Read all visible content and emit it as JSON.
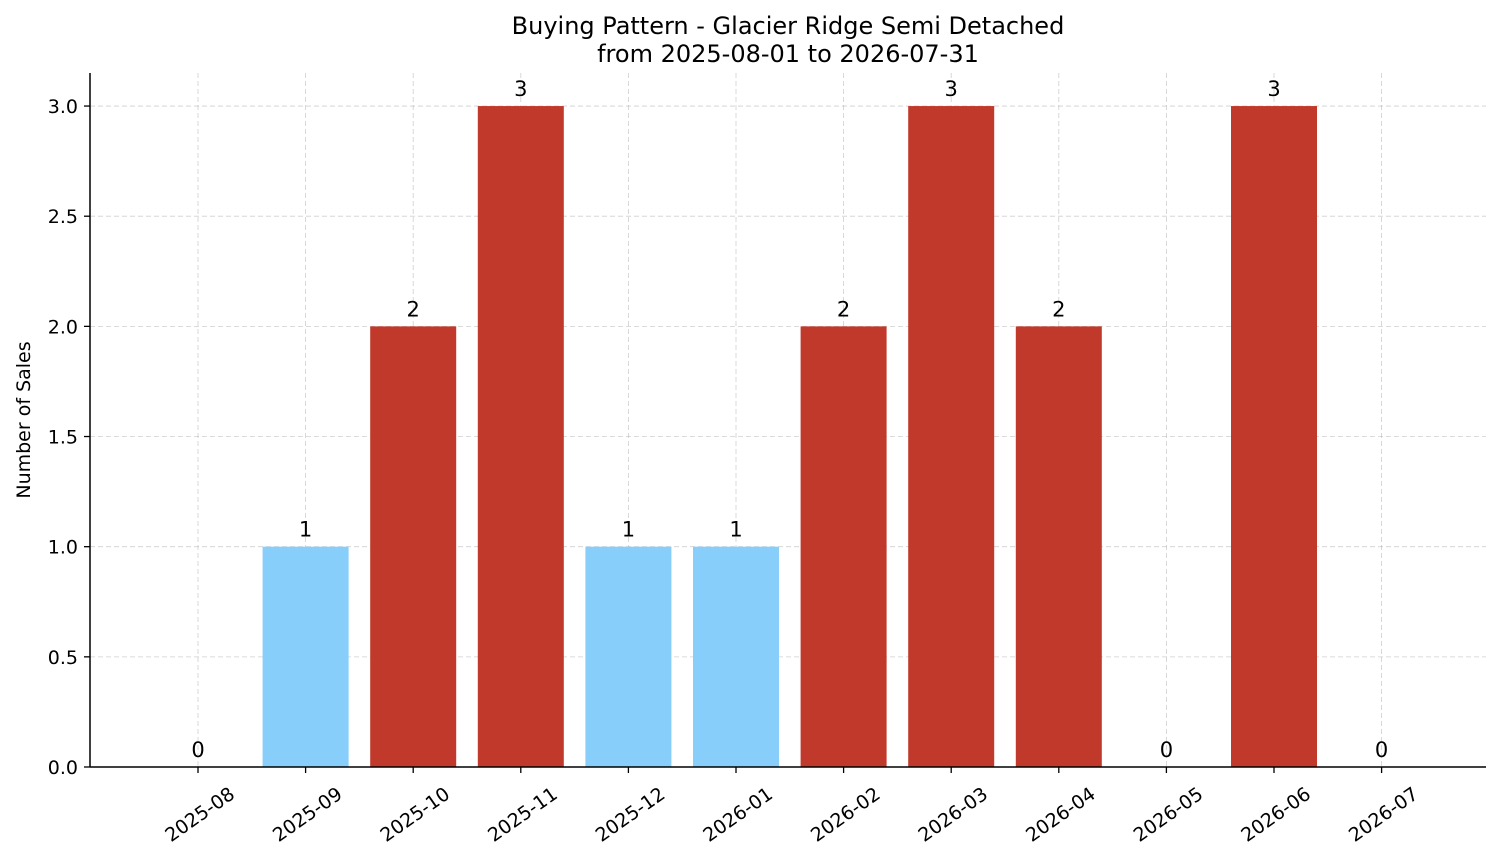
{
  "chart_data": {
    "type": "bar",
    "title": "Buying Pattern - Glacier Ridge Semi Detached",
    "subtitle": "from 2025-08-01 to 2026-07-31",
    "xlabel": "",
    "ylabel": "Number of Sales",
    "categories": [
      "2025-08",
      "2025-09",
      "2025-10",
      "2025-11",
      "2025-12",
      "2026-01",
      "2026-02",
      "2026-03",
      "2026-04",
      "2026-05",
      "2026-06",
      "2026-07"
    ],
    "values": [
      0,
      1,
      2,
      3,
      1,
      1,
      2,
      3,
      2,
      0,
      3,
      0
    ],
    "data_labels": [
      "0",
      "1",
      "2",
      "3",
      "1",
      "1",
      "2",
      "3",
      "2",
      "0",
      "3",
      "0"
    ],
    "ylim": [
      0,
      3.15
    ],
    "yticks": [
      0,
      0.5,
      1,
      1.5,
      2,
      2.5,
      3
    ],
    "ytick_labels": [
      "0.0",
      "0.5",
      "1.0",
      "1.5",
      "2.0",
      "2.5",
      "3.0"
    ],
    "grid": true,
    "colors": {
      "high": "#c0392b",
      "low": "#87cefa"
    }
  }
}
